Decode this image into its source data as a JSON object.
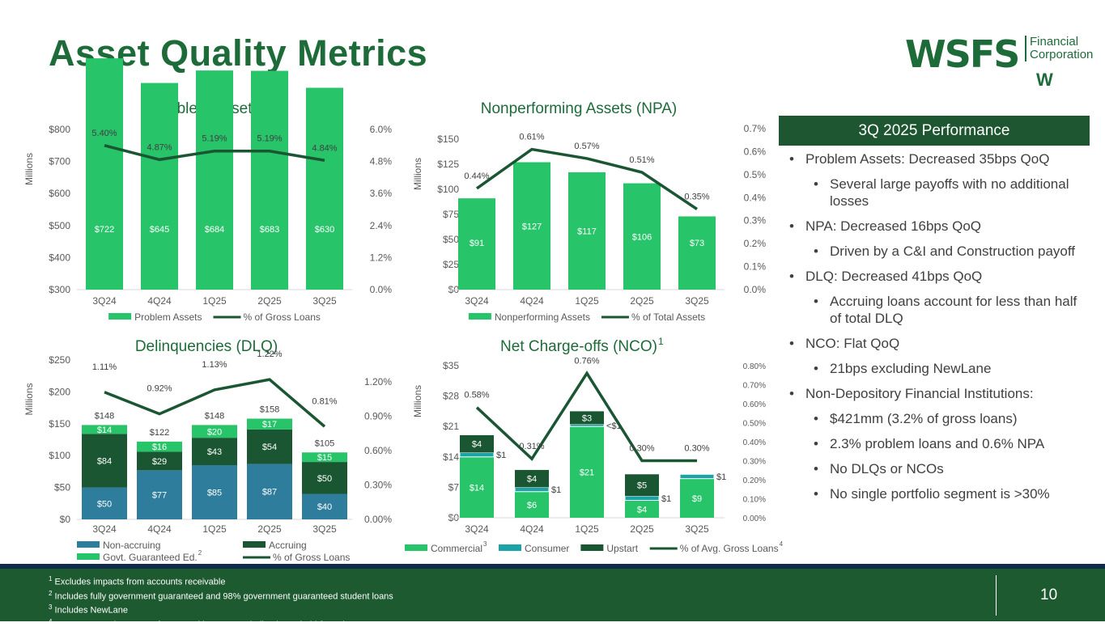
{
  "header": {
    "title": "Asset Quality Metrics",
    "logo_main": "WSFS",
    "logo_sub1": "Financial",
    "logo_sub2": "Corporation",
    "logo_w": "W"
  },
  "panel": {
    "title": "3Q 2025 Performance",
    "bullets": [
      {
        "level": 1,
        "text": "Problem Assets: Decreased 35bps QoQ"
      },
      {
        "level": 2,
        "text": "Several large payoffs with no additional losses"
      },
      {
        "level": 1,
        "text": "NPA: Decreased 16bps QoQ"
      },
      {
        "level": 2,
        "text": "Driven by a C&I and Construction payoff"
      },
      {
        "level": 1,
        "text": "DLQ: Decreased 41bps QoQ"
      },
      {
        "level": 2,
        "text": "Accruing loans account for less than half of total DLQ"
      },
      {
        "level": 1,
        "text": "NCO: Flat QoQ"
      },
      {
        "level": 2,
        "text": "21bps excluding NewLane"
      },
      {
        "level": 1,
        "text": "Non-Depository Financial Institutions:"
      },
      {
        "level": 2,
        "text": "$421mm (3.2% of gross loans)"
      },
      {
        "level": 2,
        "text": "2.3% problem loans and 0.6% NPA"
      },
      {
        "level": 2,
        "text": "No DLQs or NCOs"
      },
      {
        "level": 2,
        "text": "No single portfolio segment is >30%"
      }
    ]
  },
  "footer": {
    "notes": [
      {
        "sup": "1",
        "text": "Excludes impacts from accounts receivable"
      },
      {
        "sup": "2",
        "text": "Includes fully government guaranteed and 98% government guaranteed student loans"
      },
      {
        "sup": "3",
        "text": "Includes NewLane"
      },
      {
        "sup": "4",
        "text": "Average gross loans net of unearned income, excluding loans held-for-sale"
      }
    ],
    "page": "10"
  },
  "colors": {
    "green": "#27c46a",
    "dark": "#1a5632",
    "teal": "#1ba3a8",
    "blue": "#2e7d9c"
  },
  "chart_data": [
    {
      "type": "bar",
      "title": "Problem Assets",
      "ylabel": "Millions",
      "categories": [
        "3Q24",
        "4Q24",
        "1Q25",
        "2Q25",
        "3Q25"
      ],
      "ylim": [
        300,
        800
      ],
      "yticks": [
        "$300",
        "$400",
        "$500",
        "$600",
        "$700",
        "$800"
      ],
      "y2lim": [
        0,
        6
      ],
      "y2ticks": [
        "0.0%",
        "1.2%",
        "2.4%",
        "3.6%",
        "4.8%",
        "6.0%"
      ],
      "series": [
        {
          "name": "Problem Assets",
          "color": "#27c46a",
          "values": [
            722,
            645,
            684,
            683,
            630
          ],
          "labels": [
            "$722",
            "$645",
            "$684",
            "$683",
            "$630"
          ]
        }
      ],
      "line": {
        "name": "% of Gross Loans",
        "values": [
          5.4,
          4.87,
          5.19,
          5.19,
          4.84
        ],
        "labels": [
          "5.40%",
          "4.87%",
          "5.19%",
          "5.19%",
          "4.84%"
        ]
      }
    },
    {
      "type": "bar",
      "title": "Nonperforming Assets (NPA)",
      "ylabel": "Millions",
      "categories": [
        "3Q24",
        "4Q24",
        "1Q25",
        "2Q25",
        "3Q25"
      ],
      "ylim": [
        0,
        150
      ],
      "yticks": [
        "$0",
        "$25",
        "$50",
        "$75",
        "$100",
        "$125",
        "$150"
      ],
      "y2lim": [
        0,
        0.7
      ],
      "y2ticks": [
        "0.0%",
        "0.1%",
        "0.2%",
        "0.3%",
        "0.4%",
        "0.5%",
        "0.6%",
        "0.7%"
      ],
      "series": [
        {
          "name": "Nonperforming Assets",
          "color": "#27c46a",
          "values": [
            91,
            127,
            117,
            106,
            73
          ],
          "labels": [
            "$91",
            "$127",
            "$117",
            "$106",
            "$73"
          ]
        }
      ],
      "line": {
        "name": "% of Total Assets",
        "values": [
          0.44,
          0.61,
          0.57,
          0.51,
          0.35
        ],
        "labels": [
          "0.44%",
          "0.61%",
          "0.57%",
          "0.51%",
          "0.35%"
        ]
      }
    },
    {
      "type": "bar",
      "title": "Delinquencies (DLQ)",
      "ylabel": "Millions",
      "categories": [
        "3Q24",
        "4Q24",
        "1Q25",
        "2Q25",
        "3Q25"
      ],
      "ylim": [
        0,
        250
      ],
      "yticks": [
        "$0",
        "$50",
        "$100",
        "$150",
        "$200",
        "$250"
      ],
      "y2lim": [
        0,
        1.2
      ],
      "y2ticks": [
        "0.00%",
        "0.30%",
        "0.60%",
        "0.90%",
        "1.20%"
      ],
      "series": [
        {
          "name": "Non-accruing",
          "color": "#2e7d9c",
          "values": [
            50,
            77,
            85,
            87,
            40
          ],
          "labels": [
            "$50",
            "$77",
            "$85",
            "$87",
            "$40"
          ]
        },
        {
          "name": "Accruing",
          "color": "#1a5632",
          "values": [
            84,
            29,
            43,
            54,
            50
          ],
          "labels": [
            "$84",
            "$29",
            "$43",
            "$54",
            "$50"
          ]
        },
        {
          "name": "Govt. Guaranteed Ed.",
          "sup": "2",
          "color": "#27c46a",
          "values": [
            14,
            16,
            20,
            17,
            15
          ],
          "labels": [
            "$14",
            "$16",
            "$20",
            "$17",
            "$15"
          ]
        }
      ],
      "totals": [
        "$148",
        "$122",
        "$148",
        "$158",
        "$105"
      ],
      "line": {
        "name": "% of Gross Loans",
        "values": [
          1.11,
          0.92,
          1.13,
          1.22,
          0.81
        ],
        "labels": [
          "1.11%",
          "0.92%",
          "1.13%",
          "1.22%",
          "0.81%"
        ]
      }
    },
    {
      "type": "bar",
      "title": "Net Charge-offs (NCO)",
      "title_sup": "1",
      "ylabel": "Millions",
      "categories": [
        "3Q24",
        "4Q24",
        "1Q25",
        "2Q25",
        "3Q25"
      ],
      "ylim": [
        0,
        35
      ],
      "yticks": [
        "$0",
        "$7",
        "$14",
        "$21",
        "$28",
        "$35"
      ],
      "y2lim": [
        0,
        0.8
      ],
      "y2ticks": [
        "0.00%",
        "0.10%",
        "0.20%",
        "0.30%",
        "0.40%",
        "0.50%",
        "0.60%",
        "0.70%",
        "0.80%"
      ],
      "series": [
        {
          "name": "Commercial",
          "sup": "3",
          "color": "#27c46a",
          "values": [
            14,
            6,
            21,
            4,
            9
          ],
          "labels": [
            "$14",
            "$6",
            "$21",
            "$4",
            "$9"
          ]
        },
        {
          "name": "Consumer",
          "color": "#1ba3a8",
          "values": [
            1,
            1,
            0.5,
            1,
            1
          ],
          "labels": [
            "$1",
            "$1",
            "<$1",
            "$1",
            "$1"
          ],
          "side": true
        },
        {
          "name": "Upstart",
          "color": "#1a5632",
          "values": [
            4,
            4,
            3,
            5,
            0
          ],
          "labels": [
            "$4",
            "$4",
            "$3",
            "$5",
            ""
          ]
        }
      ],
      "line": {
        "name": "% of Avg. Gross Loans",
        "sup": "4",
        "values": [
          0.58,
          0.31,
          0.76,
          0.3,
          0.3
        ],
        "labels": [
          "0.58%",
          "0.31%",
          "0.76%",
          "0.30%",
          "0.30%"
        ]
      }
    }
  ]
}
